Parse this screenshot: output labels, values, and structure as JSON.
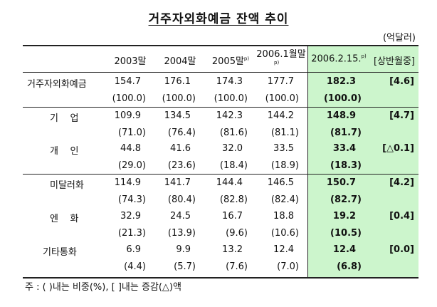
{
  "title": "거주자외화예금 잔액 추이",
  "unit": "(억달러)",
  "columns": {
    "y2003": "2003말",
    "y2004": "2004말",
    "y2005": "2005말",
    "y2005_sup": "p)",
    "y2006_jan": "2006.1월말",
    "y2006_jan_sup": "p)",
    "current": "2006.2.15.",
    "current_sup": "p)",
    "change": "[상반월중]"
  },
  "rows": [
    {
      "label": "거주자외화예금",
      "values": [
        "154.7",
        "176.1",
        "174.3",
        "177.7",
        "182.3",
        "[4.6]"
      ],
      "shares": [
        "(100.0)",
        "(100.0)",
        "(100.0)",
        "(100.0)",
        "(100.0)"
      ]
    },
    {
      "label": "기    업",
      "values": [
        "109.9",
        "134.5",
        "142.3",
        "144.2",
        "148.9",
        "[4.7]"
      ],
      "shares": [
        "(71.0)",
        "(76.4)",
        "(81.6)",
        "(81.1)",
        "(81.7)"
      ]
    },
    {
      "label": "개    인",
      "values": [
        "44.8",
        "41.6",
        "32.0",
        "33.5",
        "33.4",
        "[△0.1]"
      ],
      "shares": [
        "(29.0)",
        "(23.6)",
        "(18.4)",
        "(18.9)",
        "(18.3)"
      ]
    },
    {
      "label": "미달러화",
      "values": [
        "114.9",
        "141.7",
        "144.4",
        "146.5",
        "150.7",
        "[4.2]"
      ],
      "shares": [
        "(74.3)",
        "(80.4)",
        "(82.8)",
        "(82.4)",
        "(82.7)"
      ]
    },
    {
      "label": "엔    화",
      "values": [
        "32.9",
        "24.5",
        "16.7",
        "18.8",
        "19.2",
        "[0.4]"
      ],
      "shares": [
        "(21.3)",
        "(13.9)",
        "(9.6)",
        "(10.6)",
        "(10.5)"
      ]
    },
    {
      "label": "기타통화",
      "values": [
        "6.9",
        "9.9",
        "13.2",
        "12.4",
        "12.4",
        "[0.0]"
      ],
      "shares": [
        "(4.4)",
        "(5.7)",
        "(7.6)",
        "(7.0)",
        "(6.8)"
      ]
    }
  ],
  "note": "주 : (  )내는 비중(%), [   ]내는 증감(△)액",
  "colors": {
    "highlight": "#ccf5cc"
  }
}
